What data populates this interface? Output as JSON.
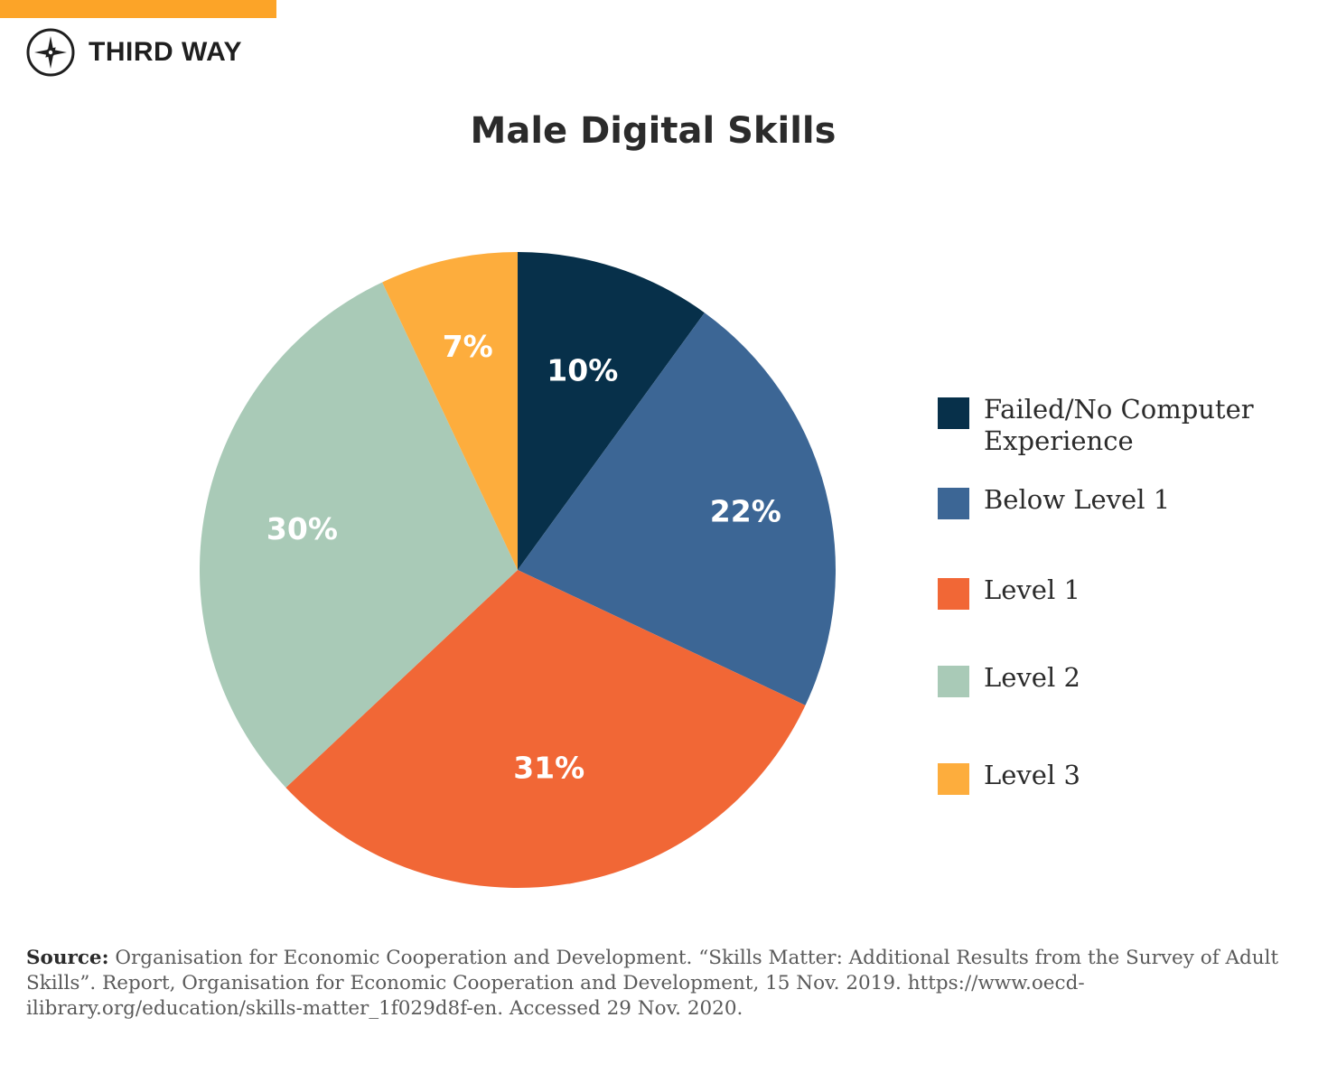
{
  "brand": {
    "name": "THIRD WAY",
    "accent_color": "#FCA428",
    "logo_icon": "compass-icon"
  },
  "chart_data": {
    "type": "pie",
    "title": "Male Digital Skills",
    "legend_position": "right",
    "slices": [
      {
        "label": "Failed/No Computer Experience",
        "value": 10,
        "display": "10%",
        "color": "#07304A"
      },
      {
        "label": "Below Level 1",
        "value": 22,
        "display": "22%",
        "color": "#3C6695"
      },
      {
        "label": "Level 1",
        "value": 31,
        "display": "31%",
        "color": "#F16736"
      },
      {
        "label": "Level 2",
        "value": 30,
        "display": "30%",
        "color": "#A9CAB7"
      },
      {
        "label": "Level 3",
        "value": 7,
        "display": "7%",
        "color": "#FDAD3D"
      }
    ]
  },
  "source": {
    "label": "Source:",
    "text": "Organisation for Economic Cooperation and Development. “Skills Matter: Additional Results from the Survey of Adult Skills”. Report, Organisation for Economic Cooperation and Development, 15 Nov. 2019. https://www.oecd-ilibrary.org/education/skills-matter_1f029d8f-en. Accessed 29 Nov. 2020."
  }
}
